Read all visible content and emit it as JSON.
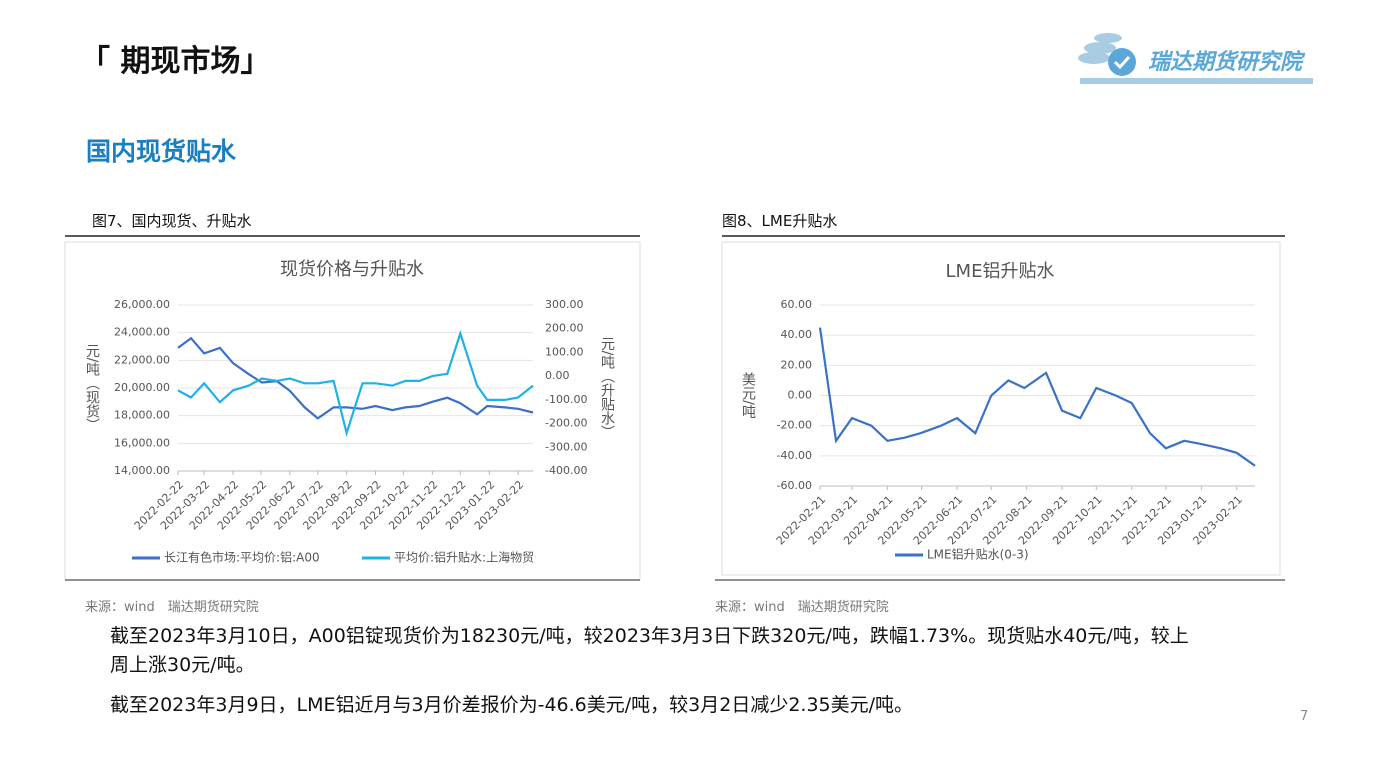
{
  "header": {
    "title": "「 期现市场」",
    "logo": "瑞达期货研究院",
    "page_number": "7"
  },
  "section_title": "国内现货贴水",
  "figures": [
    {
      "caption": "图7、国内现货、升贴水",
      "source": "来源：wind　瑞达期货研究院"
    },
    {
      "caption": "图8、LME升贴水",
      "source": "来源：wind　瑞达期货研究院"
    }
  ],
  "paragraphs": [
    "截至2023年3月10日，A00铝锭现货价为18230元/吨，较2023年3月3日下跌320元/吨，跌幅1.73%。现货贴水40元/吨，较上周上涨30元/吨。",
    "截至2023年3月9日，LME铝近月与3月价差报价为-46.6美元/吨，较3月2日减少2.35美元/吨。"
  ],
  "chart_data": [
    {
      "type": "line",
      "title": "现货价格与升贴水",
      "ylabel": "元/吨（现货）",
      "y2label": "元/吨（升贴水）",
      "x": [
        "2022-02-22",
        "2022-03-08",
        "2022-03-22",
        "2022-04-08",
        "2022-04-22",
        "2022-05-09",
        "2022-05-23",
        "2022-06-08",
        "2022-06-22",
        "2022-07-08",
        "2022-07-22",
        "2022-08-08",
        "2022-08-22",
        "2022-09-08",
        "2022-09-22",
        "2022-10-10",
        "2022-10-24",
        "2022-11-08",
        "2022-11-22",
        "2022-12-08",
        "2022-12-22",
        "2023-01-09",
        "2023-01-20",
        "2023-02-08",
        "2023-02-22",
        "2023-03-10"
      ],
      "series": [
        {
          "name": "长江有色市场:平均价:铝:A00",
          "color": "#3b70c4",
          "axis": "y",
          "values": [
            22900,
            23600,
            22500,
            22900,
            21800,
            21000,
            20400,
            20500,
            19800,
            18600,
            17800,
            18600,
            18600,
            18500,
            18700,
            18400,
            18600,
            18700,
            19000,
            19300,
            18900,
            18100,
            18700,
            18600,
            18500,
            18230
          ]
        },
        {
          "name": "平均价:铝升贴水:上海物贸",
          "color": "#1fb2e6",
          "axis": "y2",
          "values": [
            -60,
            -90,
            -30,
            -110,
            -60,
            -40,
            -10,
            -20,
            -10,
            -30,
            -30,
            -20,
            -240,
            -30,
            -30,
            -40,
            -20,
            -20,
            0,
            10,
            180,
            -40,
            -100,
            -100,
            -90,
            -40
          ]
        }
      ],
      "xlim": [
        "2022-02-22",
        "2023-03-10"
      ],
      "xticks": [
        "2022-02-22",
        "2022-03-22",
        "2022-04-22",
        "2022-05-22",
        "2022-06-22",
        "2022-07-22",
        "2022-08-22",
        "2022-09-22",
        "2022-10-22",
        "2022-11-22",
        "2022-12-22",
        "2023-01-22",
        "2023-02-22"
      ],
      "ylim": [
        14000,
        26000
      ],
      "yticks": [
        {
          "value": 14000,
          "label": "14,000.00"
        },
        {
          "value": 16000,
          "label": "16,000.00"
        },
        {
          "value": 18000,
          "label": "18,000.00"
        },
        {
          "value": 20000,
          "label": "20,000.00"
        },
        {
          "value": 22000,
          "label": "22,000.00"
        },
        {
          "value": 24000,
          "label": "24,000.00"
        },
        {
          "value": 26000,
          "label": "26,000.00"
        }
      ],
      "y2lim": [
        -400,
        300
      ],
      "y2ticks": [
        {
          "value": -400,
          "label": "-400.00"
        },
        {
          "value": -300,
          "label": "-300.00"
        },
        {
          "value": -200,
          "label": "-200.00"
        },
        {
          "value": -100,
          "label": "-100.00"
        },
        {
          "value": 0,
          "label": "0.00"
        },
        {
          "value": 100,
          "label": "100.00"
        },
        {
          "value": 200,
          "label": "200.00"
        },
        {
          "value": 300,
          "label": "300.00"
        }
      ],
      "grid": true,
      "legend": "bottom"
    },
    {
      "type": "line",
      "title": "LME铝升贴水",
      "ylabel": "美元/吨",
      "x": [
        "2022-02-21",
        "2022-03-07",
        "2022-03-21",
        "2022-04-07",
        "2022-04-21",
        "2022-05-06",
        "2022-05-20",
        "2022-06-07",
        "2022-06-21",
        "2022-07-07",
        "2022-07-21",
        "2022-08-05",
        "2022-08-19",
        "2022-09-07",
        "2022-09-21",
        "2022-10-07",
        "2022-10-21",
        "2022-11-07",
        "2022-11-21",
        "2022-12-07",
        "2022-12-21",
        "2023-01-06",
        "2023-01-20",
        "2023-02-07",
        "2023-02-21",
        "2023-03-09"
      ],
      "series": [
        {
          "name": "LME铝升贴水(0-3)",
          "color": "#3a72c6",
          "axis": "y",
          "values": [
            45,
            -30,
            -15,
            -20,
            -30,
            -28,
            -25,
            -20,
            -15,
            -25,
            0,
            10,
            5,
            15,
            -10,
            -15,
            5,
            0,
            -5,
            -25,
            -35,
            -30,
            -32,
            -35,
            -38,
            -46.6
          ]
        }
      ],
      "xlim": [
        "2022-02-21",
        "2023-03-09"
      ],
      "xticks": [
        "2022-02-21",
        "2022-03-21",
        "2022-04-21",
        "2022-05-21",
        "2022-06-21",
        "2022-07-21",
        "2022-08-21",
        "2022-09-21",
        "2022-10-21",
        "2022-11-21",
        "2022-12-21",
        "2023-01-21",
        "2023-02-21"
      ],
      "ylim": [
        -60,
        60
      ],
      "yticks": [
        {
          "value": -60,
          "label": "-60.00"
        },
        {
          "value": -40,
          "label": "-40.00"
        },
        {
          "value": -20,
          "label": "-20.00"
        },
        {
          "value": 0,
          "label": "0.00"
        },
        {
          "value": 20,
          "label": "20.00"
        },
        {
          "value": 40,
          "label": "40.00"
        },
        {
          "value": 60,
          "label": "60.00"
        }
      ],
      "grid": true,
      "legend": "bottom"
    }
  ]
}
